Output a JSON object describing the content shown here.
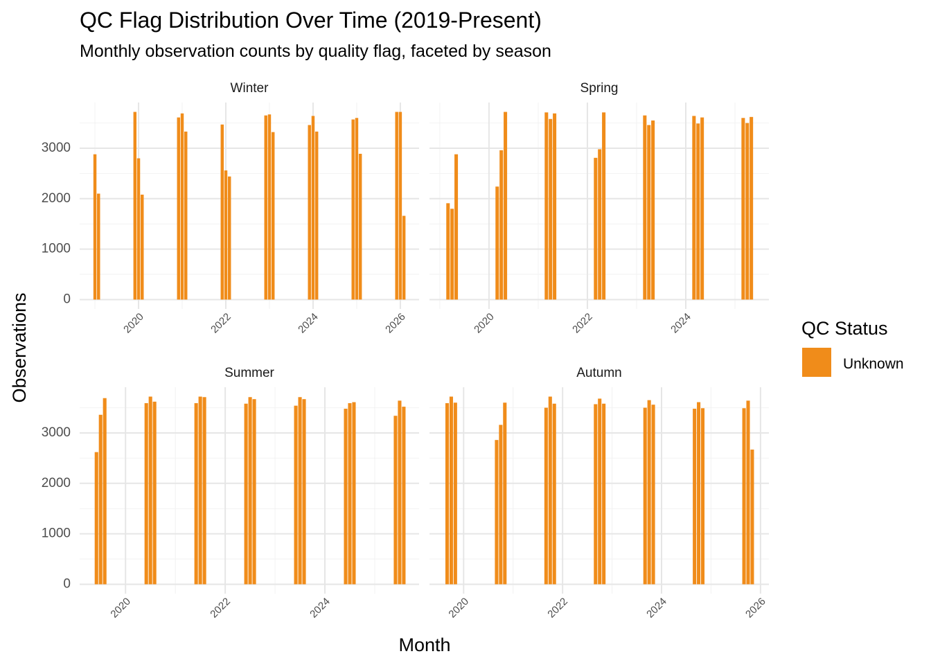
{
  "title": "QC Flag Distribution Over Time (2019-Present)",
  "subtitle": "Monthly observation counts by quality flag, faceted by season",
  "x_label": "Month",
  "y_label": "Observations",
  "legend_title": "QC Status",
  "chart_data": [
    {
      "type": "bar",
      "title": "Winter",
      "x": [
        2019,
        2019.083,
        2019.917,
        2020,
        2020.083,
        2020.917,
        2021,
        2021.083,
        2021.917,
        2022,
        2022.083,
        2022.917,
        2023,
        2023.083,
        2023.917,
        2024,
        2024.083,
        2024.917,
        2025,
        2025.083,
        2025.917,
        2026,
        2026.083
      ],
      "series": [
        {
          "name": "Unknown",
          "color": "#f08c1a",
          "values": [
            2880,
            2100,
            3720,
            2800,
            2080,
            3610,
            3690,
            3330,
            3470,
            2560,
            2440,
            3650,
            3670,
            3320,
            3460,
            3640,
            3330,
            3570,
            3600,
            2890,
            3720,
            3720,
            1660
          ]
        }
      ],
      "xlim": [
        2018.65,
        2026.43
      ],
      "xticks": [
        2020,
        2022,
        2024,
        2026
      ],
      "ylim": [
        -186,
        3906
      ],
      "yticks": [
        0,
        1000,
        2000,
        3000
      ],
      "grid": true
    },
    {
      "type": "bar",
      "title": "Spring",
      "x": [
        2019.167,
        2019.25,
        2019.333,
        2020.167,
        2020.25,
        2020.333,
        2021.167,
        2021.25,
        2021.333,
        2022.167,
        2022.25,
        2022.333,
        2023.167,
        2023.25,
        2023.333,
        2024.167,
        2024.25,
        2024.333,
        2025.167,
        2025.25,
        2025.333
      ],
      "series": [
        {
          "name": "Unknown",
          "color": "#f08c1a",
          "values": [
            1910,
            1800,
            2880,
            2240,
            2960,
            3720,
            3710,
            3580,
            3690,
            2810,
            2980,
            3710,
            3650,
            3460,
            3550,
            3640,
            3490,
            3610,
            3600,
            3500,
            3620
          ]
        }
      ],
      "xlim": [
        2018.79,
        2025.69
      ],
      "xticks": [
        2020,
        2022,
        2024
      ],
      "ylim": [
        -186,
        3906
      ],
      "yticks": [
        0,
        1000,
        2000,
        3000
      ],
      "grid": true
    },
    {
      "type": "bar",
      "title": "Summer",
      "x": [
        2019.417,
        2019.5,
        2019.583,
        2020.417,
        2020.5,
        2020.583,
        2021.417,
        2021.5,
        2021.583,
        2022.417,
        2022.5,
        2022.583,
        2023.417,
        2023.5,
        2023.583,
        2024.417,
        2024.5,
        2024.583,
        2025.417,
        2025.5,
        2025.583
      ],
      "series": [
        {
          "name": "Unknown",
          "color": "#f08c1a",
          "values": [
            2620,
            3360,
            3690,
            3590,
            3720,
            3620,
            3590,
            3720,
            3710,
            3580,
            3710,
            3670,
            3540,
            3710,
            3670,
            3480,
            3590,
            3610,
            3340,
            3640,
            3520
          ]
        }
      ],
      "xlim": [
        2019.08,
        2025.89
      ],
      "xticks": [
        2020,
        2022,
        2024
      ],
      "ylim": [
        -186,
        3906
      ],
      "yticks": [
        0,
        1000,
        2000,
        3000
      ],
      "grid": true
    },
    {
      "type": "bar",
      "title": "Autumn",
      "x": [
        2019.667,
        2019.75,
        2019.833,
        2020.667,
        2020.75,
        2020.833,
        2021.667,
        2021.75,
        2021.833,
        2022.667,
        2022.75,
        2022.833,
        2023.667,
        2023.75,
        2023.833,
        2024.667,
        2024.75,
        2024.833,
        2025.667,
        2025.75,
        2025.833
      ],
      "series": [
        {
          "name": "Unknown",
          "color": "#f08c1a",
          "values": [
            3590,
            3720,
            3600,
            2860,
            3160,
            3600,
            3500,
            3720,
            3580,
            3570,
            3680,
            3580,
            3500,
            3650,
            3560,
            3480,
            3610,
            3490,
            3490,
            3640,
            2670
          ]
        }
      ],
      "xlim": [
        2019.31,
        2026.17
      ],
      "xticks": [
        2020,
        2022,
        2024,
        2026
      ],
      "ylim": [
        -186,
        3906
      ],
      "yticks": [
        0,
        1000,
        2000,
        3000
      ],
      "grid": true
    }
  ]
}
